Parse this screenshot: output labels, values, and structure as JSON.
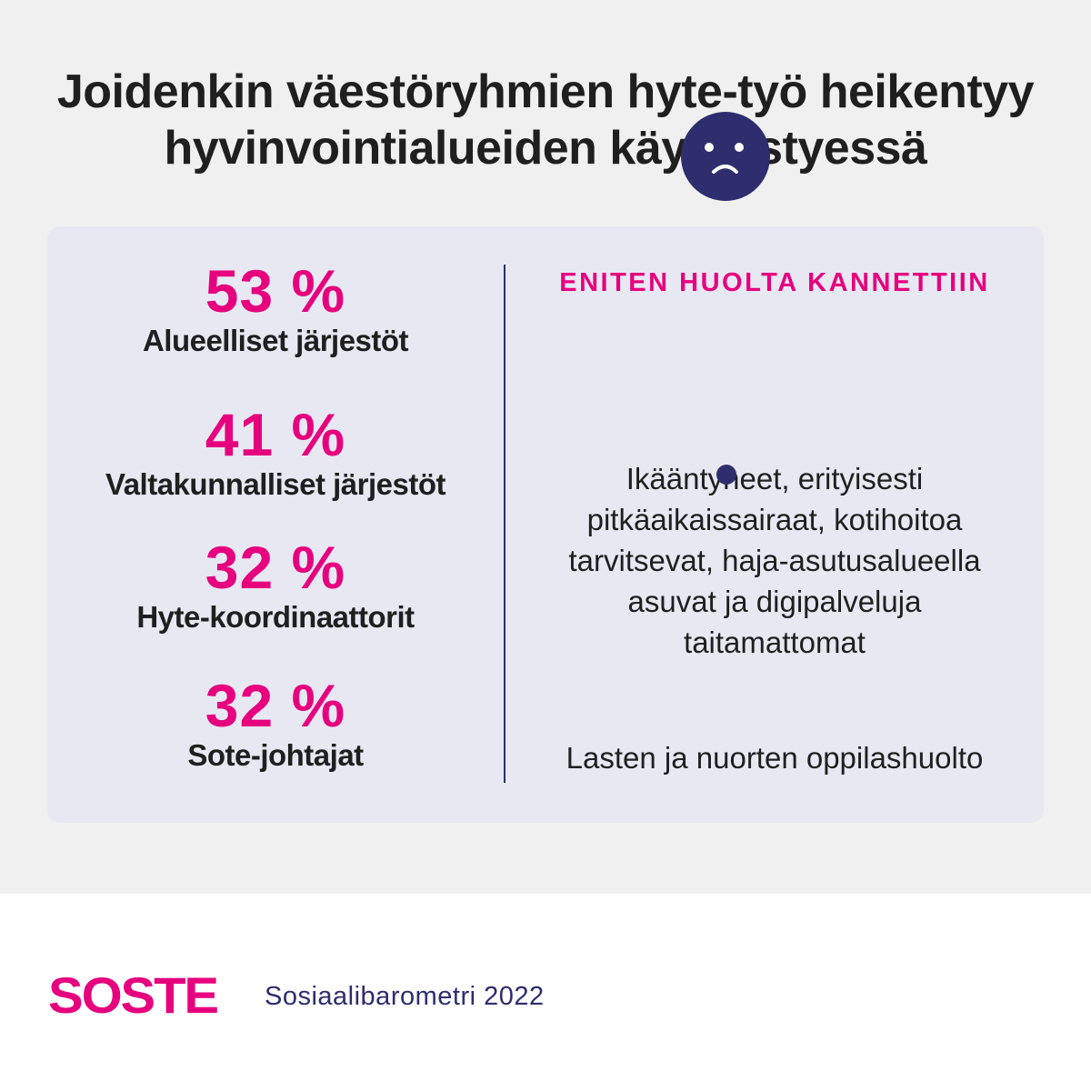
{
  "title": {
    "line1": "Joidenkin väestöryhmien hyte-työ heikentyy",
    "line2": "hyvinvointialueiden käynnistyessä"
  },
  "stats": [
    {
      "value": "53 %",
      "label": "Alueelliset järjestöt"
    },
    {
      "value": "41 %",
      "label": "Valtakunnalliset järjestöt"
    },
    {
      "value": "32 %",
      "label": "Hyte-koordinaattorit"
    },
    {
      "value": "32 %",
      "label": "Sote-johtajat"
    }
  ],
  "concern": {
    "heading": "ENITEN HUOLTA KANNETTIIN",
    "icon": "sad-face-icon",
    "group1_lines": [
      "Ikääntyneet, erityisesti",
      "pitkäaikaissairaat, kotihoitoa",
      "tarvitsevat, haja-asutusalueella",
      "asuvat ja digipalveluja",
      "taitamattomat"
    ],
    "group2": "Lasten ja nuorten oppilashuolto"
  },
  "footer": {
    "logo": "SOSTE",
    "source": "Sosiaalibarometri 2022"
  },
  "colors": {
    "accent": "#e6007e",
    "navy": "#2e2d6e",
    "text": "#1f1f1f",
    "background": "#f0f0f0",
    "card": "#e8e8f3"
  }
}
